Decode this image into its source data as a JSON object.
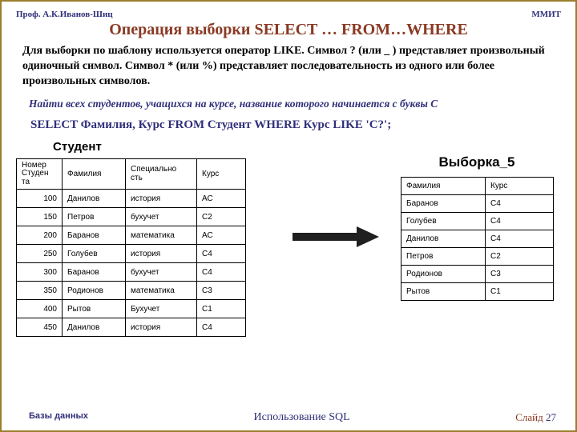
{
  "header": {
    "author": "Проф. А.К.Иванов-Шиц",
    "org": "ММИТ"
  },
  "title": "Операция выборки SELECT … FROM…WHERE",
  "paragraph": "Для выборки по шаблону используется оператор LIKE. Символ ? (или _ ) представляет произвольный одиночный символ. Символ * (или %) представляет последовательность из одного или более произвольных символов.",
  "task": "Найти всех студентов, учащихся на курсе, название которого начинается с буквы С",
  "sql": "SELECT Фамилия, Курс FROM Студент WHERE Курс LIKE 'С?';",
  "left_table": {
    "title": "Студент",
    "headers": [
      "Номер\nСтуден\nта",
      "Фамилия",
      "Специально\nсть",
      "Курс"
    ],
    "rows": [
      [
        "100",
        "Данилов",
        "история",
        "АС"
      ],
      [
        "150",
        "Петров",
        "бухучет",
        "С2"
      ],
      [
        "200",
        "Баранов",
        "математика",
        "АС"
      ],
      [
        "250",
        "Голубев",
        "история",
        "С4"
      ],
      [
        "300",
        "Баранов",
        "бухучет",
        "С4"
      ],
      [
        "350",
        "Родионов",
        "математика",
        "С3"
      ],
      [
        "400",
        "Рытов",
        "Бухучет",
        "С1"
      ],
      [
        "450",
        "Данилов",
        "история",
        "С4"
      ]
    ]
  },
  "right_table": {
    "title": "Выборка_5",
    "headers": [
      "Фамилия",
      "Курс"
    ],
    "rows": [
      [
        "Баранов",
        "С4"
      ],
      [
        "Голубев",
        "С4"
      ],
      [
        "Данилов",
        "С4"
      ],
      [
        "Петров",
        "С2"
      ],
      [
        "Родионов",
        "С3"
      ],
      [
        "Рытов",
        "С1"
      ]
    ]
  },
  "footer": {
    "left": "Базы данных",
    "mid": "Использование SQL",
    "right_label": "Слайд ",
    "right_num": "27"
  },
  "colors": {
    "border": "#9b7e2e",
    "heading": "#8a3a24",
    "accent": "#2f2f7a"
  }
}
